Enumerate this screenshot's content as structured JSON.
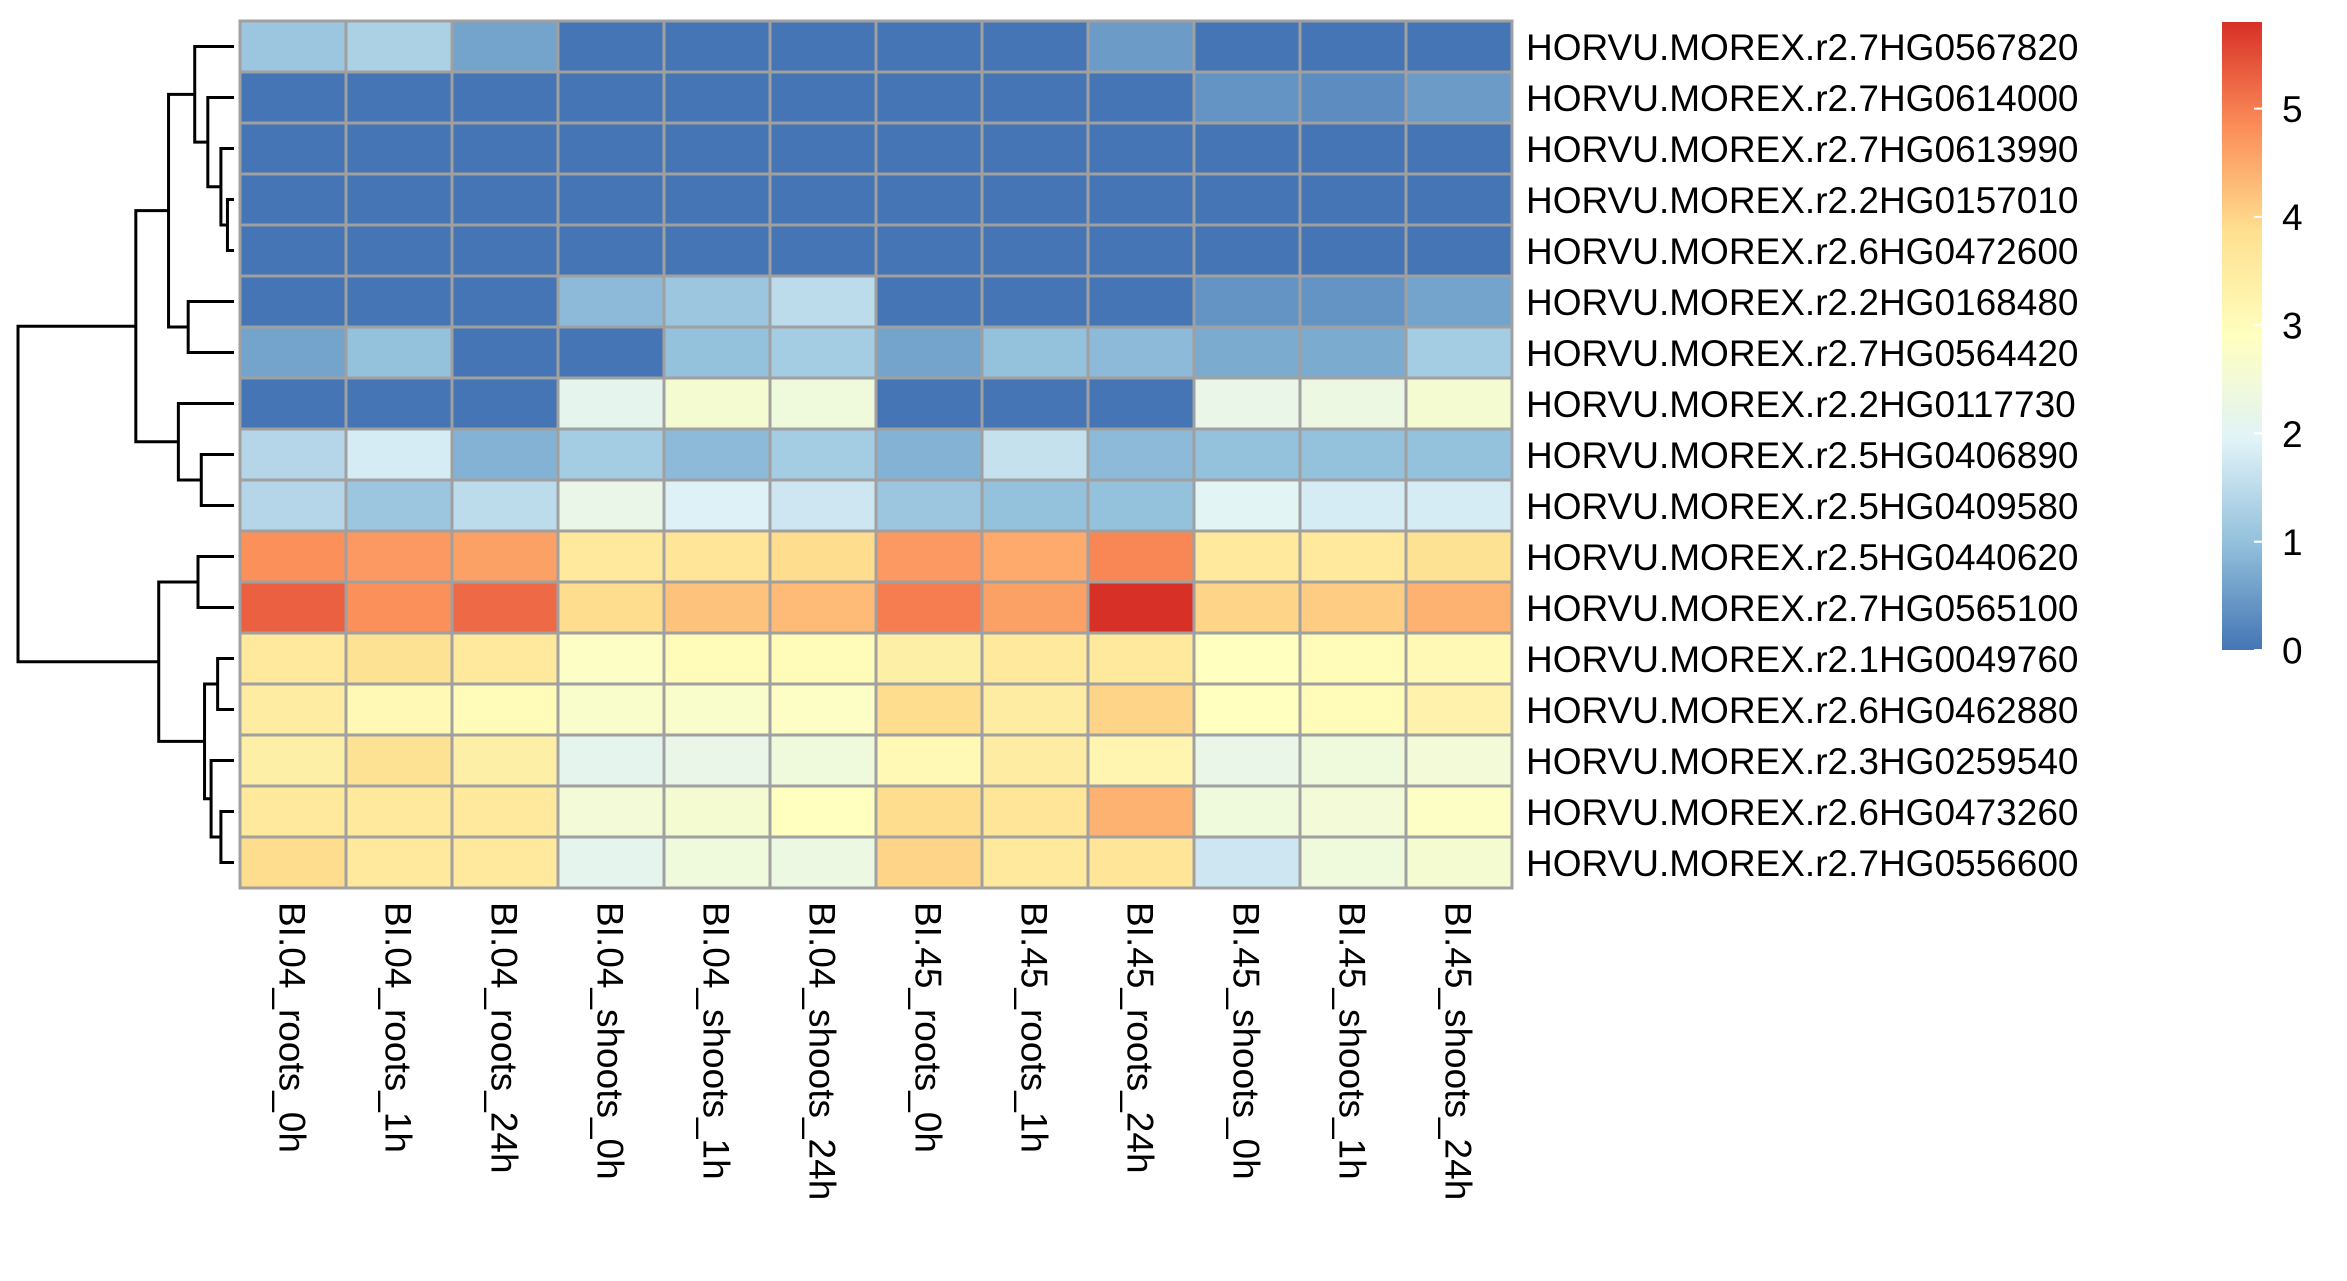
{
  "chart_data": {
    "type": "heatmap",
    "title": "",
    "xlabel": "",
    "ylabel": "",
    "columns": [
      "BI.04_roots_0h",
      "BI.04_roots_1h",
      "BI.04_roots_24h",
      "BI.04_shoots_0h",
      "BI.04_shoots_1h",
      "BI.04_shoots_24h",
      "BI.45_roots_0h",
      "BI.45_roots_1h",
      "BI.45_roots_24h",
      "BI.45_shoots_0h",
      "BI.45_shoots_1h",
      "BI.45_shoots_24h"
    ],
    "rows": [
      "HORVU.MOREX.r2.7HG0567820",
      "HORVU.MOREX.r2.7HG0614000",
      "HORVU.MOREX.r2.7HG0613990",
      "HORVU.MOREX.r2.2HG0157010",
      "HORVU.MOREX.r2.6HG0472600",
      "HORVU.MOREX.r2.2HG0168480",
      "HORVU.MOREX.r2.7HG0564420",
      "HORVU.MOREX.r2.2HG0117730",
      "HORVU.MOREX.r2.5HG0406890",
      "HORVU.MOREX.r2.5HG0409580",
      "HORVU.MOREX.r2.5HG0440620",
      "HORVU.MOREX.r2.7HG0565100",
      "HORVU.MOREX.r2.1HG0049760",
      "HORVU.MOREX.r2.6HG0462880",
      "HORVU.MOREX.r2.3HG0259540",
      "HORVU.MOREX.r2.6HG0473260",
      "HORVU.MOREX.r2.7HG0556600"
    ],
    "values": [
      [
        1.1,
        1.3,
        0.6,
        0.0,
        0.0,
        0.0,
        0.0,
        0.0,
        0.5,
        0.0,
        0.0,
        0.0
      ],
      [
        0.0,
        0.0,
        0.0,
        0.0,
        0.0,
        0.0,
        0.0,
        0.0,
        0.0,
        0.4,
        0.3,
        0.5
      ],
      [
        0.0,
        0.0,
        0.0,
        0.0,
        0.0,
        0.0,
        0.0,
        0.0,
        0.0,
        0.0,
        0.0,
        0.0
      ],
      [
        0.0,
        0.0,
        0.0,
        0.0,
        0.0,
        0.0,
        0.0,
        0.0,
        0.0,
        0.0,
        0.0,
        0.0
      ],
      [
        0.0,
        0.0,
        0.0,
        0.0,
        0.0,
        0.0,
        0.0,
        0.0,
        0.0,
        0.0,
        0.0,
        0.0
      ],
      [
        0.0,
        0.0,
        0.0,
        0.9,
        1.1,
        1.5,
        0.0,
        0.0,
        0.0,
        0.4,
        0.4,
        0.6
      ],
      [
        0.6,
        1.0,
        0.0,
        0.0,
        1.0,
        1.2,
        0.6,
        1.0,
        0.9,
        0.7,
        0.7,
        1.2
      ],
      [
        0.0,
        0.0,
        0.0,
        2.1,
        2.6,
        2.4,
        0.0,
        0.0,
        0.0,
        2.2,
        2.3,
        2.6
      ],
      [
        1.4,
        1.8,
        0.8,
        1.2,
        0.9,
        1.2,
        0.8,
        1.6,
        0.9,
        1.0,
        1.0,
        1.0
      ],
      [
        1.4,
        1.1,
        1.5,
        2.2,
        1.9,
        1.7,
        1.1,
        1.0,
        1.0,
        2.0,
        1.8,
        1.8
      ],
      [
        4.8,
        4.7,
        4.6,
        3.6,
        3.7,
        3.9,
        4.7,
        4.5,
        4.9,
        3.6,
        3.6,
        3.8
      ],
      [
        5.3,
        4.8,
        5.2,
        3.9,
        4.2,
        4.3,
        5.0,
        4.6,
        5.8,
        4.0,
        4.1,
        4.4
      ],
      [
        3.6,
        3.8,
        3.6,
        2.8,
        3.0,
        3.0,
        3.4,
        3.6,
        3.6,
        2.9,
        3.0,
        3.1
      ],
      [
        3.5,
        3.1,
        3.0,
        2.7,
        2.7,
        2.8,
        3.9,
        3.5,
        4.0,
        2.9,
        3.0,
        3.3
      ],
      [
        3.4,
        3.8,
        3.4,
        2.1,
        2.2,
        2.4,
        3.1,
        3.5,
        3.2,
        2.2,
        2.4,
        2.5
      ],
      [
        3.6,
        3.6,
        3.6,
        2.5,
        2.6,
        2.9,
        3.9,
        3.7,
        4.4,
        2.4,
        2.5,
        2.8
      ],
      [
        3.9,
        3.6,
        3.6,
        2.1,
        2.4,
        2.3,
        4.0,
        3.6,
        3.7,
        1.7,
        2.4,
        2.6
      ]
    ],
    "value_range": [
      0,
      5.8
    ],
    "colorscale": [
      "#4575b4",
      "#91bfdb",
      "#e0f3f8",
      "#ffffbf",
      "#fee090",
      "#fc8d59",
      "#d73027"
    ],
    "cell_border_color": "#a0a0a0",
    "legend": {
      "placement": "right",
      "ticks": [
        "0",
        "1",
        "2",
        "3",
        "4",
        "5"
      ],
      "tick_values": [
        0,
        1,
        2,
        3,
        4,
        5
      ]
    },
    "dendrogram": {
      "side": "left",
      "leaf_order": [
        0,
        1,
        2,
        3,
        4,
        5,
        6,
        7,
        8,
        9,
        10,
        11,
        12,
        13,
        14,
        15,
        16
      ],
      "merges": [
        {
          "a": 3,
          "b": 4,
          "height": 0.02
        },
        {
          "a": 2,
          "b": -1,
          "height": 0.04
        },
        {
          "a": 1,
          "b": -2,
          "height": 0.08
        },
        {
          "a": 0,
          "b": -3,
          "height": 0.12
        },
        {
          "a": 5,
          "b": 6,
          "height": 0.14
        },
        {
          "a": -4,
          "b": -5,
          "height": 0.2
        },
        {
          "a": 8,
          "b": 9,
          "height": 0.1
        },
        {
          "a": 7,
          "b": -7,
          "height": 0.17
        },
        {
          "a": -6,
          "b": -8,
          "height": 0.3
        },
        {
          "a": 10,
          "b": 11,
          "height": 0.11
        },
        {
          "a": 12,
          "b": 13,
          "height": 0.05
        },
        {
          "a": 15,
          "b": 16,
          "height": 0.04
        },
        {
          "a": 14,
          "b": -12,
          "height": 0.07
        },
        {
          "a": -11,
          "b": -13,
          "height": 0.09
        },
        {
          "a": -10,
          "b": -14,
          "height": 0.23
        },
        {
          "a": -9,
          "b": -15,
          "height": 0.66
        }
      ]
    }
  }
}
